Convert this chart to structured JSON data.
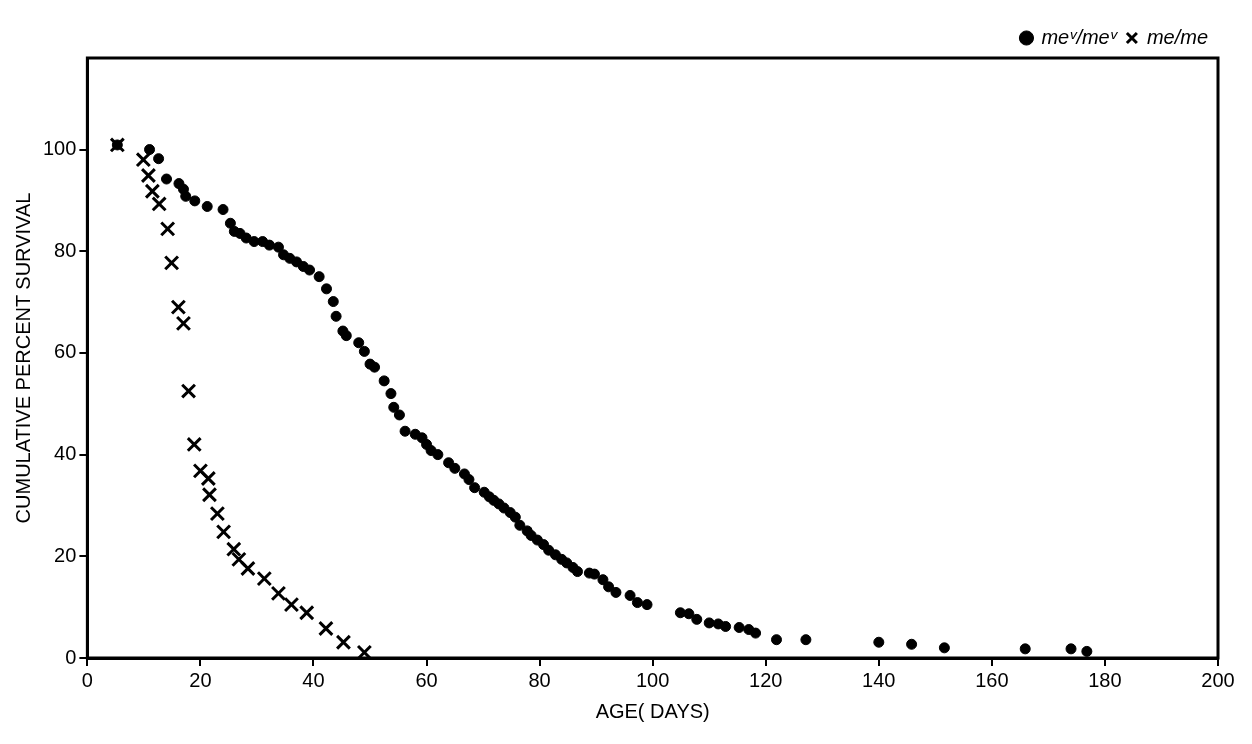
{
  "chart_data": {
    "type": "scatter",
    "xlabel": "AGE( DAYS)",
    "ylabel": "CUMULATIVE PERCENT SURVIVAL",
    "xlim": [
      0,
      200
    ],
    "xticks": [
      0,
      20,
      40,
      60,
      80,
      100,
      120,
      140,
      160,
      180,
      200
    ],
    "ylim": [
      0,
      118
    ],
    "yticks": [
      0,
      20,
      40,
      60,
      80,
      100
    ],
    "legend": "top right",
    "grid": false,
    "series": [
      {
        "name": "meᵛ/meᵛ",
        "color": "#000000",
        "marker": "circle",
        "x": [
          5.3,
          11,
          12.6,
          14,
          16.2,
          17,
          17.4,
          19,
          21.2,
          24,
          25.3,
          26,
          27,
          28.1,
          29.5,
          31,
          32.2,
          33.8,
          34.7,
          35.8,
          37,
          38.2,
          39.3,
          41,
          42.3,
          43.5,
          44,
          45.2,
          45.8,
          48,
          49,
          50,
          50.8,
          52.5,
          53.7,
          54.2,
          55.2,
          56.2,
          58,
          59.2,
          60,
          60.8,
          62,
          63.9,
          65,
          66.7,
          67.5,
          68.5,
          70.2,
          71.1,
          71.9,
          72.8,
          73.7,
          74.8,
          75.7,
          76.5,
          77.8,
          78.5,
          79.6,
          80.7,
          81.6,
          82.8,
          83.9,
          84.8,
          85.9,
          86.7,
          88.8,
          89.7,
          91.2,
          92.2,
          93.5,
          96,
          97.3,
          99,
          104.9,
          106.4,
          107.8,
          110,
          111.6,
          112.9,
          115.3,
          117,
          118.2,
          121.9,
          127.1,
          140,
          145.8,
          151.6,
          165.9,
          174,
          176.8
        ],
        "values": [
          100.9,
          100,
          98.2,
          94.2,
          93.3,
          92.2,
          90.8,
          89.9,
          88.8,
          88.2,
          85.5,
          83.9,
          83.5,
          82.6,
          81.9,
          81.9,
          81.2,
          80.8,
          79.3,
          78.6,
          77.9,
          77,
          76.3,
          75,
          72.6,
          70.1,
          67.2,
          64.3,
          63.4,
          62,
          60.3,
          57.8,
          57.2,
          54.5,
          52,
          49.3,
          47.8,
          44.6,
          44,
          43.3,
          42,
          40.8,
          40,
          38.4,
          37.3,
          36.2,
          35.1,
          33.5,
          32.6,
          31.7,
          31,
          30.3,
          29.5,
          28.6,
          27.7,
          26.1,
          25,
          24.1,
          23.2,
          22.3,
          21.2,
          20.3,
          19.4,
          18.7,
          17.8,
          17,
          16.7,
          16.5,
          15.4,
          14,
          12.9,
          12.3,
          10.9,
          10.5,
          8.9,
          8.7,
          7.6,
          6.9,
          6.7,
          6.2,
          6,
          5.6,
          4.9,
          3.6,
          3.6,
          3.1,
          2.7,
          2,
          1.8,
          1.8,
          1.3
        ]
      },
      {
        "name": "me/me",
        "color": "#000000",
        "marker": "cross",
        "x": [
          5.3,
          9.9,
          10.8,
          11.5,
          12.7,
          14.2,
          14.9,
          16.1,
          17,
          17.9,
          18.9,
          20,
          21.4,
          21.6,
          23,
          24.1,
          25.9,
          26.8,
          28.4,
          31.3,
          33.8,
          36.1,
          38.8,
          42.2,
          45.3,
          49
        ],
        "values": [
          100.9,
          98,
          94.9,
          91.8,
          89.3,
          84.4,
          77.7,
          69,
          65.8,
          52.5,
          42,
          36.8,
          35.3,
          32.1,
          28.4,
          24.8,
          21.4,
          19.4,
          17.6,
          15.6,
          12.7,
          10.5,
          8.9,
          5.8,
          3.1,
          1.1
        ]
      }
    ]
  }
}
